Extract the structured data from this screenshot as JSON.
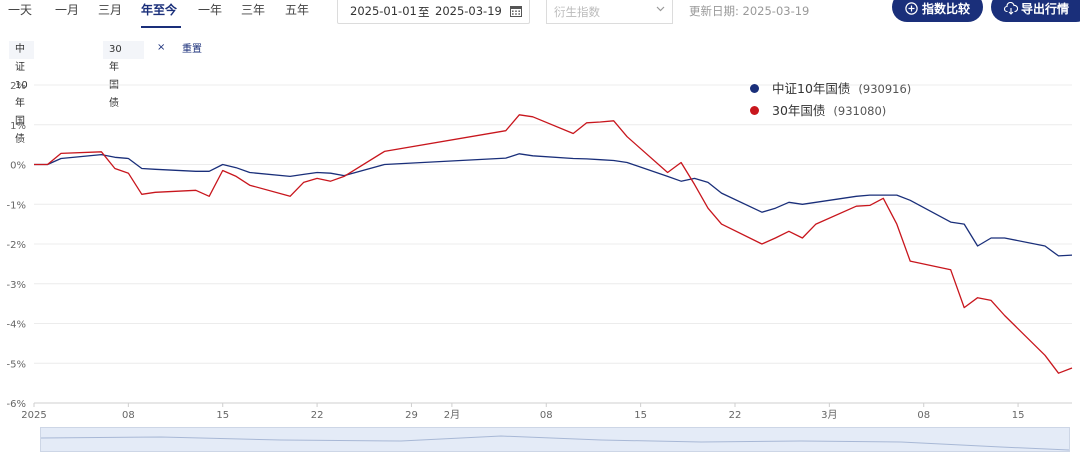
{
  "ranges": [
    {
      "label": "一天",
      "active": false
    },
    {
      "label": "一月",
      "active": false
    },
    {
      "label": "三月",
      "active": false
    },
    {
      "label": "年至今",
      "active": true
    },
    {
      "label": "一年",
      "active": false
    },
    {
      "label": "三年",
      "active": false
    },
    {
      "label": "五年",
      "active": false
    }
  ],
  "date_range": {
    "start": "2025-01-01",
    "separator": "至",
    "end": "2025-03-19"
  },
  "index_select": {
    "placeholder": "衍生指数"
  },
  "update_date": "更新日期: 2025-03-19",
  "buttons": {
    "compare": "指数比较",
    "export": "导出行情"
  },
  "chips": [
    {
      "label": "中证10年国债",
      "closable": false
    },
    {
      "label": "30年国债",
      "closable": true
    }
  ],
  "chip_close_glyph": "×",
  "reset_label": "重置",
  "colors": {
    "accent": "#1a2f7a",
    "series_blue": "#1a2f7a",
    "series_red": "#c8161d"
  },
  "chart_data": {
    "type": "line",
    "title": "",
    "xlabel": "",
    "ylabel": "",
    "y_unit": "%",
    "ylim": [
      -6,
      2
    ],
    "yticks": [
      2,
      1,
      0,
      -1,
      -2,
      -3,
      -4,
      -5,
      -6
    ],
    "xlim": [
      "2025-01-01",
      "2025-03-19"
    ],
    "xticks": [
      {
        "date": "2025-01-01",
        "label": "2025"
      },
      {
        "date": "2025-01-08",
        "label": "08"
      },
      {
        "date": "2025-01-15",
        "label": "15"
      },
      {
        "date": "2025-01-22",
        "label": "22"
      },
      {
        "date": "2025-01-29",
        "label": "29"
      },
      {
        "date": "2025-02-01",
        "label": "2月"
      },
      {
        "date": "2025-02-08",
        "label": "08"
      },
      {
        "date": "2025-02-15",
        "label": "15"
      },
      {
        "date": "2025-02-22",
        "label": "22"
      },
      {
        "date": "2025-03-01",
        "label": "3月"
      },
      {
        "date": "2025-03-08",
        "label": "08"
      },
      {
        "date": "2025-03-15",
        "label": "15"
      }
    ],
    "grid": true,
    "legend_position": "top-right",
    "x": [
      "2025-01-01",
      "2025-01-02",
      "2025-01-03",
      "2025-01-06",
      "2025-01-07",
      "2025-01-08",
      "2025-01-09",
      "2025-01-10",
      "2025-01-13",
      "2025-01-14",
      "2025-01-15",
      "2025-01-16",
      "2025-01-17",
      "2025-01-20",
      "2025-01-21",
      "2025-01-22",
      "2025-01-23",
      "2025-01-24",
      "2025-01-27",
      "2025-02-05",
      "2025-02-06",
      "2025-02-07",
      "2025-02-10",
      "2025-02-11",
      "2025-02-12",
      "2025-02-13",
      "2025-02-14",
      "2025-02-17",
      "2025-02-18",
      "2025-02-19",
      "2025-02-20",
      "2025-02-21",
      "2025-02-24",
      "2025-02-25",
      "2025-02-26",
      "2025-02-27",
      "2025-02-28",
      "2025-03-03",
      "2025-03-04",
      "2025-03-05",
      "2025-03-06",
      "2025-03-07",
      "2025-03-10",
      "2025-03-11",
      "2025-03-12",
      "2025-03-13",
      "2025-03-14",
      "2025-03-17",
      "2025-03-18",
      "2025-03-19"
    ],
    "series": [
      {
        "name": "中证10年国债",
        "code": "(930916)",
        "color": "#1a2f7a",
        "values": [
          0,
          0,
          0.15,
          0.25,
          0.18,
          0.15,
          -0.1,
          -0.12,
          -0.17,
          -0.17,
          0.0,
          -0.08,
          -0.2,
          -0.3,
          -0.25,
          -0.2,
          -0.22,
          -0.28,
          0.0,
          0.16,
          0.27,
          0.22,
          0.15,
          0.14,
          0.12,
          0.1,
          0.05,
          -0.3,
          -0.42,
          -0.35,
          -0.45,
          -0.72,
          -1.2,
          -1.1,
          -0.95,
          -1.0,
          -0.95,
          -0.8,
          -0.77,
          -0.77,
          -0.77,
          -0.9,
          -1.45,
          -1.5,
          -2.05,
          -1.85,
          -1.85,
          -2.05,
          -2.3,
          -2.28
        ]
      },
      {
        "name": "30年国债",
        "code": "(931080)",
        "color": "#c8161d",
        "values": [
          0,
          0,
          0.28,
          0.32,
          -0.1,
          -0.22,
          -0.75,
          -0.7,
          -0.65,
          -0.8,
          -0.15,
          -0.3,
          -0.52,
          -0.8,
          -0.45,
          -0.35,
          -0.42,
          -0.3,
          0.33,
          0.85,
          1.25,
          1.2,
          0.78,
          1.05,
          1.07,
          1.1,
          0.7,
          -0.2,
          0.05,
          -0.5,
          -1.1,
          -1.5,
          -2.0,
          -1.85,
          -1.68,
          -1.85,
          -1.5,
          -1.05,
          -1.03,
          -0.85,
          -1.5,
          -2.43,
          -2.65,
          -3.6,
          -3.35,
          -3.42,
          -3.8,
          -4.8,
          -5.25,
          -5.12
        ]
      }
    ]
  }
}
